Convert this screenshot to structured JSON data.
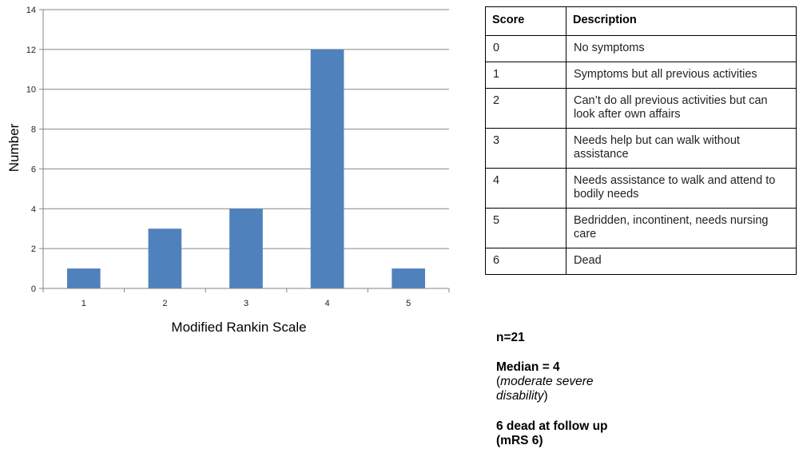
{
  "chart_data": {
    "type": "bar",
    "categories": [
      "1",
      "2",
      "3",
      "4",
      "5"
    ],
    "values": [
      1,
      3,
      4,
      12,
      1
    ],
    "xlabel": "Modified Rankin Scale",
    "ylabel": "Number",
    "ylim": [
      0,
      14
    ],
    "yticks": [
      0,
      2,
      4,
      6,
      8,
      10,
      12,
      14
    ],
    "grid": true,
    "bar_color": "#4f81bd"
  },
  "table": {
    "headers": [
      "Score",
      "Description"
    ],
    "rows": [
      {
        "score": "0",
        "desc": "No symptoms"
      },
      {
        "score": "1",
        "desc": "Symptoms but all previous activities"
      },
      {
        "score": "2",
        "desc": "Can’t do all previous activities but can look after own affairs"
      },
      {
        "score": "3",
        "desc": "Needs help but can walk without assistance"
      },
      {
        "score": "4",
        "desc": "Needs assistance to walk and attend to bodily needs"
      },
      {
        "score": "5",
        "desc": "Bedridden, incontinent,  needs nursing care"
      },
      {
        "score": "6",
        "desc": "Dead"
      }
    ]
  },
  "notes": {
    "n": "n=21",
    "median": "Median = 4",
    "median_paren_open": "(",
    "median_desc": "moderate severe disability",
    "median_paren_close": ")",
    "dead": "6 dead at follow up (mRS 6)"
  }
}
